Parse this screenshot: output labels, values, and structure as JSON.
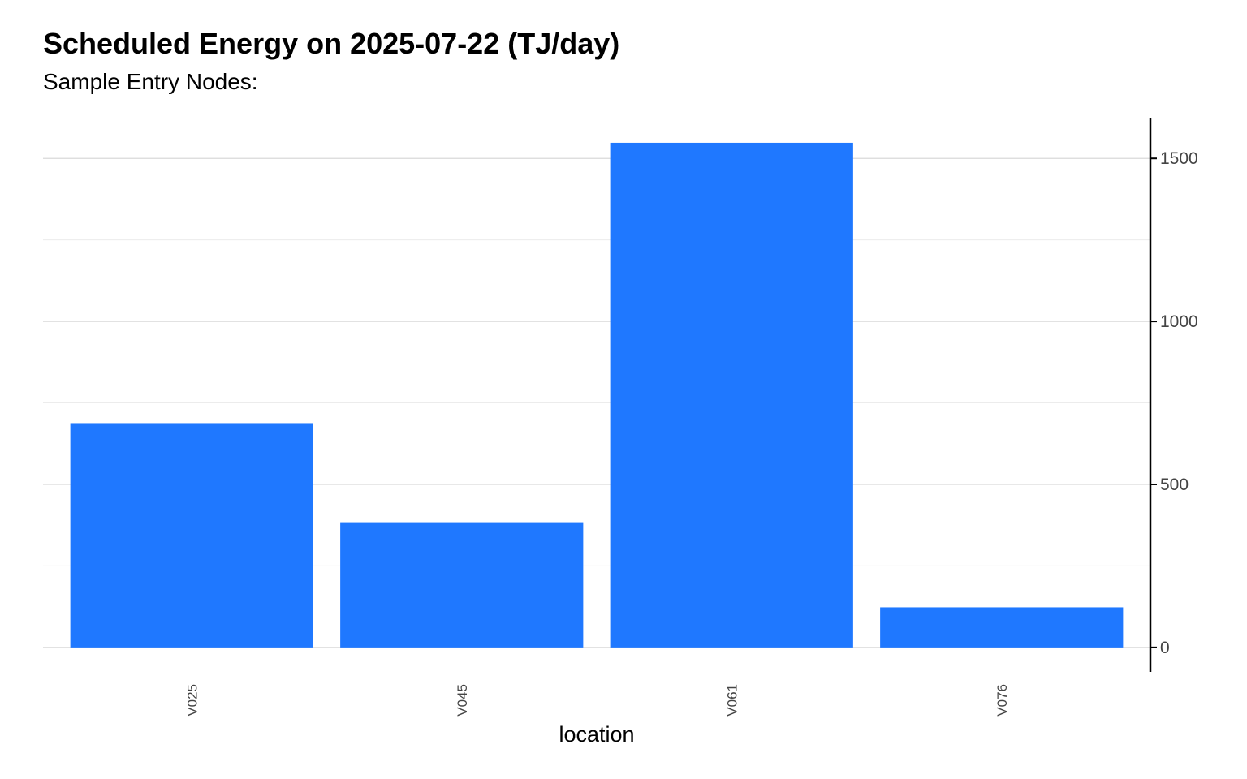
{
  "chart_data": {
    "type": "bar",
    "title": "Scheduled Energy on 2025-07-22 (TJ/day)",
    "subtitle": "Sample Entry Nodes:",
    "xlabel": "location",
    "ylabel": "",
    "categories": [
      "V025",
      "V045",
      "V061",
      "V076"
    ],
    "values": [
      688,
      384,
      1548,
      123
    ],
    "ylim": [
      -75,
      1625
    ],
    "yticks": [
      0,
      500,
      1000,
      1500
    ],
    "ytick_labels": [
      "0",
      "500",
      "1000",
      "1500"
    ],
    "y_axis_position": "right",
    "grid": true,
    "legend": "none",
    "colors": {
      "bar": "#1f78ff",
      "grid_major": "#d9d9d9",
      "grid_minor": "#ececec",
      "axis": "#000000"
    }
  }
}
